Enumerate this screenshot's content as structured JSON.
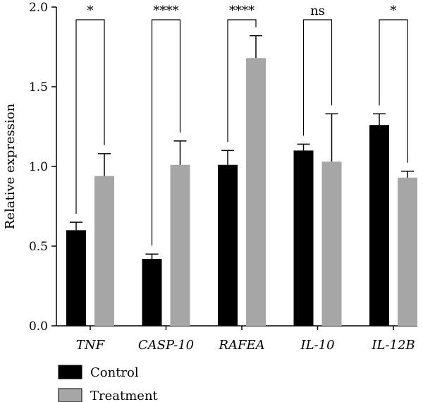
{
  "chart_data": {
    "type": "bar",
    "categories": [
      "TNF",
      "CASP-10",
      "RAFEA",
      "IL-10",
      "IL-12B"
    ],
    "series": [
      {
        "name": "Control",
        "color": "#000000",
        "values": [
          0.6,
          0.42,
          1.01,
          1.1,
          1.26
        ],
        "errors": [
          0.05,
          0.03,
          0.09,
          0.04,
          0.07
        ]
      },
      {
        "name": "Treatment",
        "color": "#a6a6a6",
        "values": [
          0.94,
          1.01,
          1.68,
          1.03,
          0.93
        ],
        "errors": [
          0.14,
          0.15,
          0.14,
          0.3,
          0.04
        ]
      }
    ],
    "significance": [
      "*",
      "****",
      "****",
      "ns",
      "*"
    ],
    "ylabel": "Relative expression",
    "xlabel": "",
    "title": "",
    "ylim": [
      0,
      2.0
    ],
    "yticks": [
      "0.0",
      "0.5",
      "1.0",
      "1.5",
      "2.0"
    ],
    "legend_position": "bottom-left",
    "grid": false
  }
}
